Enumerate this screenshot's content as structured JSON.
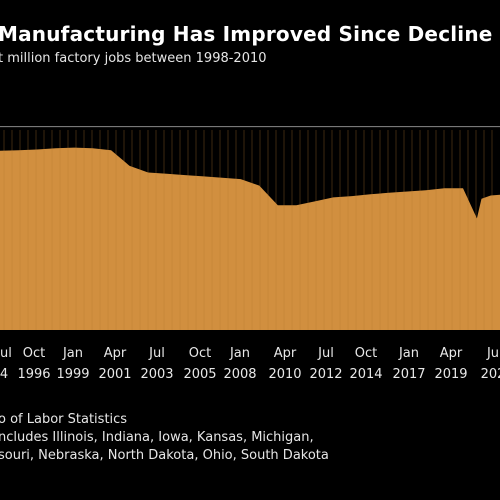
{
  "title": "Manufacturing Has Improved Since Decline",
  "subtitle": "t million factory jobs between 1998-2010",
  "footnotes": [
    "o of Labor Statistics",
    "ncludes Illinois, Indiana, Iowa, Kansas, Michigan,",
    "souri, Nebraska, North Dakota, Ohio, South Dakota"
  ],
  "colors": {
    "fill": "#d18f3f",
    "background": "#000000",
    "reference_line": "#8a8a8a",
    "text": "#ffffff"
  },
  "chart_data": {
    "type": "area",
    "title": "Manufacturing Has Improved Since Decline",
    "subtitle": "t million factory jobs between 1998-2010",
    "x_tick_labels": [
      {
        "month": "Jul",
        "year": "4"
      },
      {
        "month": "Oct",
        "year": "1996"
      },
      {
        "month": "Jan",
        "year": "1999"
      },
      {
        "month": "Apr",
        "year": "2001"
      },
      {
        "month": "Jul",
        "year": "2003"
      },
      {
        "month": "Oct",
        "year": "2005"
      },
      {
        "month": "Jan",
        "year": "2008"
      },
      {
        "month": "Apr",
        "year": "2010"
      },
      {
        "month": "Jul",
        "year": "2012"
      },
      {
        "month": "Oct",
        "year": "2014"
      },
      {
        "month": "Jan",
        "year": "2017"
      },
      {
        "month": "Apr",
        "year": "2019"
      },
      {
        "month": "Ju",
        "year": "202"
      }
    ],
    "x": [
      1994.5,
      1995.5,
      1996.5,
      1997.5,
      1998.5,
      1999.5,
      2000.5,
      2001.5,
      2002.5,
      2003.5,
      2004.5,
      2005.5,
      2006.5,
      2007.5,
      2008.5,
      2009.5,
      2010.5,
      2011.5,
      2012.5,
      2013.5,
      2014.5,
      2015.5,
      2016.5,
      2017.5,
      2018.5,
      2019.5,
      2020.25,
      2020.5,
      2021.0,
      2021.5
    ],
    "values": [
      0.965,
      0.97,
      0.975,
      0.985,
      0.99,
      0.985,
      0.97,
      0.85,
      0.8,
      0.79,
      0.78,
      0.77,
      0.76,
      0.75,
      0.7,
      0.55,
      0.55,
      0.58,
      0.61,
      0.62,
      0.635,
      0.645,
      0.655,
      0.665,
      0.68,
      0.68,
      0.45,
      0.6,
      0.625,
      0.63
    ],
    "reference_line": 1.15,
    "ylim": [
      -0.4,
      1.2
    ],
    "grid": false,
    "legend": "none"
  }
}
